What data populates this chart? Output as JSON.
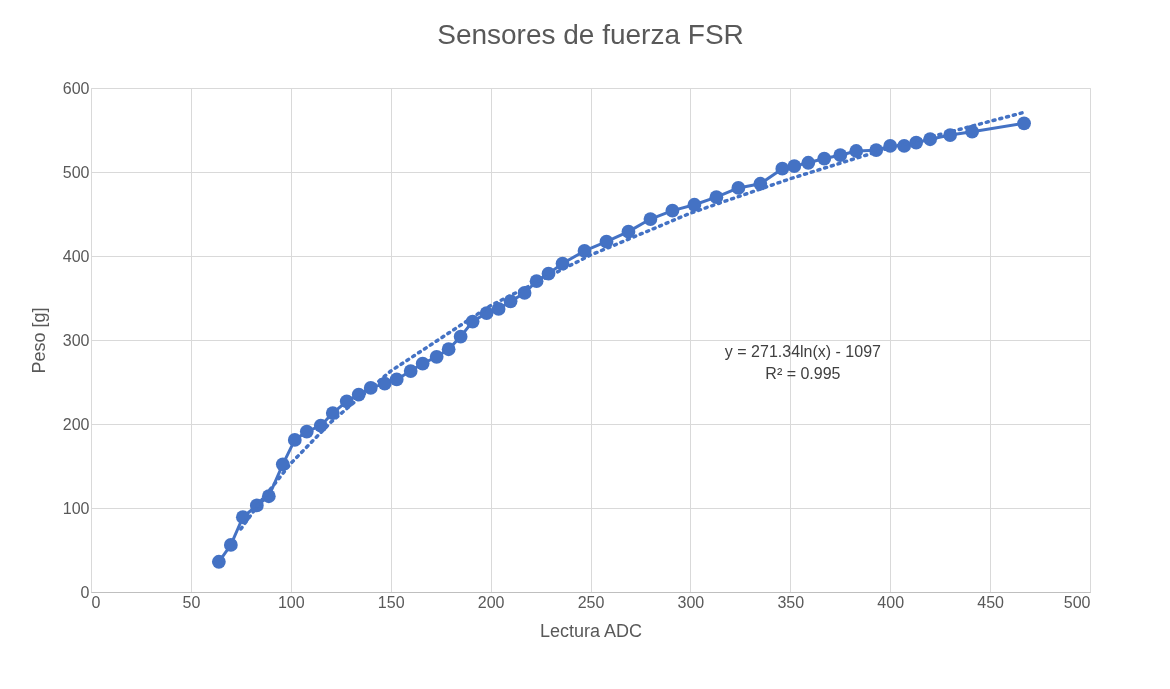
{
  "chart_data": {
    "type": "line",
    "title": "Sensores de fuerza FSR",
    "xlabel": "Lectura ADC",
    "ylabel": "Peso [g]",
    "xlim": [
      0,
      500
    ],
    "xticks": [
      0,
      50,
      100,
      150,
      200,
      250,
      300,
      350,
      400,
      450,
      500
    ],
    "ylim": [
      0,
      600
    ],
    "yticks": [
      0,
      100,
      200,
      300,
      400,
      500,
      600
    ],
    "grid": true,
    "annotations": [
      "y = 271.34ln(x) - 1097",
      "R² = 0.995"
    ],
    "series": [
      {
        "color": "#4472c4",
        "marker": "circle",
        "line_style": "solid",
        "x": [
          64,
          70,
          76,
          83,
          89,
          96,
          102,
          108,
          115,
          121,
          128,
          134,
          140,
          147,
          153,
          160,
          166,
          173,
          179,
          185,
          191,
          198,
          204,
          210,
          217,
          223,
          229,
          236,
          247,
          258,
          269,
          280,
          291,
          302,
          313,
          324,
          335,
          346,
          352,
          359,
          367,
          375,
          383,
          393,
          400,
          407,
          413,
          420,
          430,
          441,
          467
        ],
        "values": [
          36,
          56,
          89,
          103,
          114,
          152,
          181,
          191,
          198,
          213,
          227,
          235,
          243,
          248,
          253,
          263,
          272,
          280,
          289,
          304,
          322,
          332,
          337,
          346,
          356,
          370,
          379,
          391,
          406,
          417,
          429,
          444,
          454,
          461,
          470,
          481,
          486,
          504,
          507,
          511,
          516,
          520,
          525,
          526,
          531,
          531,
          535,
          539,
          544,
          548,
          558
        ]
      },
      {
        "color": "#4472c4",
        "marker": "none",
        "line_style": "dotted",
        "x": [
          75,
          85,
          100,
          120,
          150,
          200,
          250,
          300,
          350,
          400,
          467
        ],
        "values": [
          75,
          108,
          153,
          202,
          263,
          341,
          401,
          451,
          492,
          529,
          571
        ]
      }
    ]
  }
}
